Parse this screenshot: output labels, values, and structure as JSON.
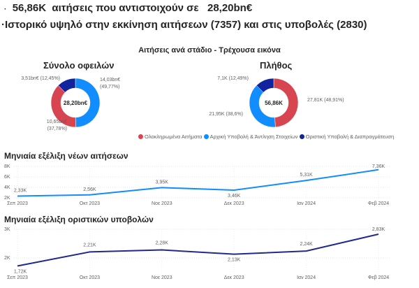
{
  "headline1": {
    "bullet": "·",
    "count": "56,86K",
    "text": "αιτήσεις που αντιστοιχούν σε",
    "amount": "28,20bn€"
  },
  "headline2": {
    "bullet": "·",
    "text": "Ιστορικό υψηλό στην εκκίνηση αιτήσεων (7357) και στις υποβολές (2830)"
  },
  "section_title": "Αιτήσεις ανά στάδιο - Τρέχουσα εικόνα",
  "colors": {
    "completed": "#D64550",
    "initial": "#118DFF",
    "final": "#12239E"
  },
  "legend": [
    {
      "label": "Ολοκληρωμένα Αιτήματα",
      "color": "#D64550"
    },
    {
      "label": "Αρχική Υποβολή & Άντληση Στοιχείων",
      "color": "#118DFF"
    },
    {
      "label": "Οριστική Υποβολή & Διαπραγμάτευση",
      "color": "#12239E"
    }
  ],
  "chart_data": [
    {
      "type": "pie",
      "title": "Σύνολο οφειλών",
      "center_label": "28,20bn€",
      "slices": [
        {
          "name": "Αρχική Υποβολή & Άντληση Στοιχείων",
          "value": 14.03,
          "percent": 49.77,
          "label": "14,03bn€",
          "label2": "(49,77%)",
          "color": "#118DFF"
        },
        {
          "name": "Ολοκληρωμένα Αιτήματα",
          "value": 10.65,
          "percent": 37.78,
          "label": "10,65bn€",
          "label2": "(37,78%)",
          "color": "#D64550"
        },
        {
          "name": "Οριστική Υποβολή & Διαπραγμάτευση",
          "value": 3.51,
          "percent": 12.45,
          "label": "3,51bn€ (12,45%)",
          "label2": "",
          "color": "#12239E"
        }
      ]
    },
    {
      "type": "pie",
      "title": "Πλήθος",
      "center_label": "56,86K",
      "slices": [
        {
          "name": "Ολοκληρωμένα Αιτήματα",
          "value": 27.81,
          "percent": 48.91,
          "label": "27,81K (48,91%)",
          "label2": "",
          "color": "#D64550"
        },
        {
          "name": "Αρχική Υποβολή & Άντληση Στοιχείων",
          "value": 21.95,
          "percent": 38.6,
          "label": "21,95K (38,6%)",
          "label2": "",
          "color": "#118DFF"
        },
        {
          "name": "Οριστική Υποβολή & Διαπραγμάτευση",
          "value": 7.1,
          "percent": 12.49,
          "label": "7,1K (12,49%)",
          "label2": "",
          "color": "#12239E"
        }
      ]
    },
    {
      "type": "line",
      "title": "Μηνιαία εξέλιξη νέων αιτήσεων",
      "color": "#118DFF",
      "categories": [
        "Σεπ 2023",
        "Οκτ 2023",
        "Νοε 2023",
        "Δεκ 2023",
        "Ιαν 2024",
        "Φεβ 2024"
      ],
      "values": [
        2.33,
        2.56,
        3.95,
        3.46,
        5.31,
        7.36
      ],
      "labels": [
        "2,33K",
        "2,56K",
        "3,95K",
        "3,46K",
        "5,31K",
        "7,36K"
      ],
      "yticks": [
        "2K",
        "4K",
        "6K",
        "8K"
      ],
      "ytick_values": [
        2,
        4,
        6,
        8
      ],
      "ylim": [
        2,
        8
      ]
    },
    {
      "type": "line",
      "title": "Μηνιαία εξέλιξη οριστικών υποβολών",
      "color": "#1F2A8A",
      "categories": [
        "Σεπ 2023",
        "Οκτ 2023",
        "Νοε 2023",
        "Δεκ 2023",
        "Ιαν 2024",
        "Φεβ 2024"
      ],
      "values": [
        1.72,
        2.21,
        2.28,
        2.13,
        2.24,
        2.83
      ],
      "labels": [
        "1,72K",
        "2,21K",
        "2,28K",
        "2,13K",
        "2,24K",
        "2,83K"
      ],
      "yticks": [
        "2K",
        "3K"
      ],
      "ytick_values": [
        2,
        3
      ],
      "ylim": [
        2,
        3
      ]
    }
  ]
}
